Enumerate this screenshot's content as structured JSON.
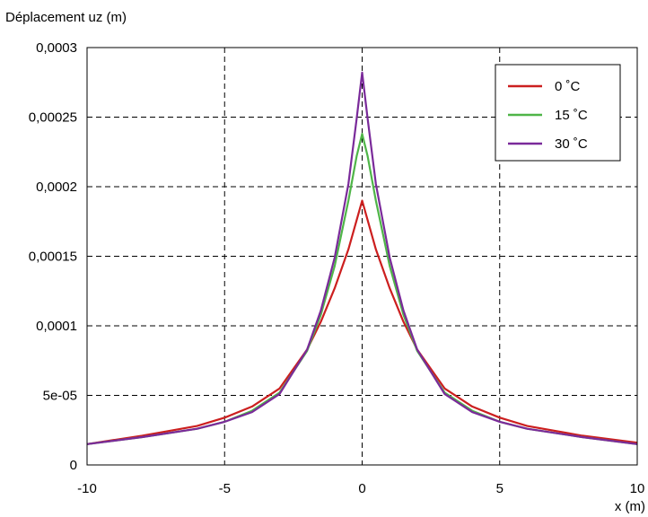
{
  "chart_data": {
    "type": "line",
    "title": "",
    "xlabel": "x (m)",
    "ylabel": "Déplacement uz (m)",
    "xlim": [
      -10,
      10
    ],
    "ylim": [
      0,
      0.0003
    ],
    "x_ticks": [
      -10,
      -5,
      0,
      5,
      10
    ],
    "x_tick_labels": [
      "-10",
      "-5",
      "0",
      "5",
      "10"
    ],
    "y_ticks": [
      0,
      5e-05,
      0.0001,
      0.00015,
      0.0002,
      0.00025,
      0.0003
    ],
    "y_tick_labels": [
      "0",
      "5e-05",
      "0,0001",
      "0,00015",
      "0,0002",
      "0,00025",
      "0,0003"
    ],
    "grid": true,
    "legend_position": "top-right",
    "x": [
      -10,
      -8,
      -6,
      -5,
      -4,
      -3,
      -2,
      -1.5,
      -1,
      -0.5,
      -0.2,
      0,
      0.2,
      0.5,
      1,
      1.5,
      2,
      3,
      4,
      5,
      6,
      8,
      10
    ],
    "series": [
      {
        "name": "0 °C",
        "color": "#cc1f1f",
        "values": [
          1.5e-05,
          2.1e-05,
          2.8e-05,
          3.4e-05,
          4.2e-05,
          5.5e-05,
          8.3e-05,
          0.000103,
          0.000127,
          0.000155,
          0.000176,
          0.00019,
          0.000176,
          0.000155,
          0.000127,
          0.000103,
          8.3e-05,
          5.5e-05,
          4.2e-05,
          3.4e-05,
          2.8e-05,
          2.1e-05,
          1.6e-05
        ]
      },
      {
        "name": "15 °C",
        "color": "#4fb548",
        "values": [
          1.5e-05,
          2e-05,
          2.6e-05,
          3.1e-05,
          3.9e-05,
          5.2e-05,
          8.2e-05,
          0.000108,
          0.000143,
          0.00019,
          0.000222,
          0.000238,
          0.000222,
          0.00019,
          0.000143,
          0.000108,
          8.2e-05,
          5.2e-05,
          3.9e-05,
          3.1e-05,
          2.6e-05,
          2e-05,
          1.5e-05
        ]
      },
      {
        "name": "30 °C",
        "color": "#7a2a9a",
        "values": [
          1.5e-05,
          2e-05,
          2.6e-05,
          3.1e-05,
          3.8e-05,
          5.1e-05,
          8.3e-05,
          0.000111,
          0.000149,
          0.000202,
          0.000249,
          0.000282,
          0.000249,
          0.000202,
          0.000149,
          0.000111,
          8.3e-05,
          5.1e-05,
          3.8e-05,
          3.1e-05,
          2.6e-05,
          2e-05,
          1.5e-05
        ]
      }
    ],
    "legend": [
      "0 ˚C",
      "15 ˚C",
      "30 ˚C"
    ]
  }
}
